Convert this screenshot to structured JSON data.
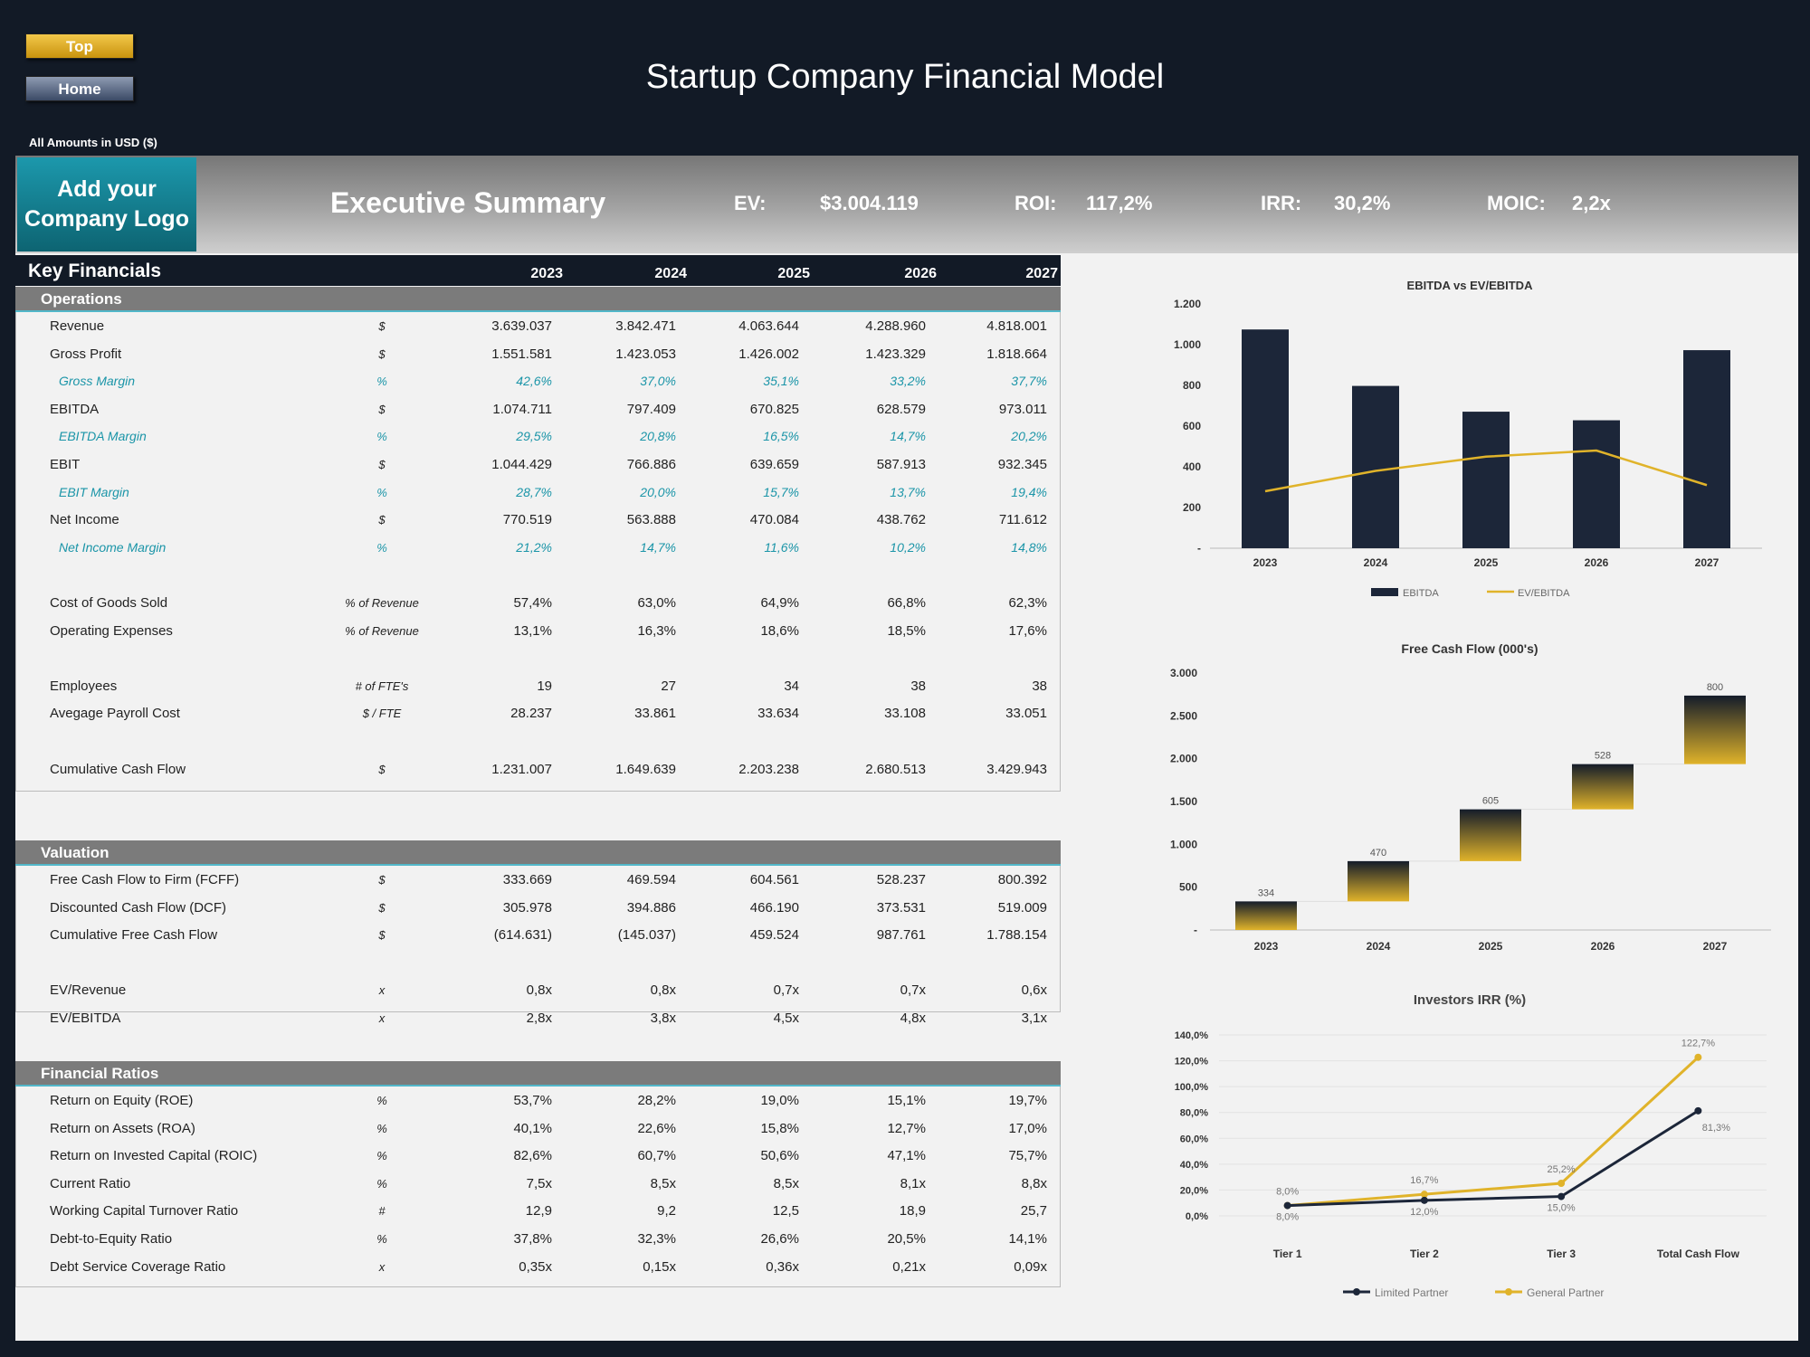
{
  "nav": {
    "top_label": "Top",
    "home_label": "Home"
  },
  "title": "Startup Company Financial Model",
  "amounts_note": "All Amounts in  USD ($)",
  "summary": {
    "logo_text": "Add your Company Logo",
    "section_title": "Executive Summary",
    "kpis": [
      {
        "label": "EV:",
        "value": "$3.004.119"
      },
      {
        "label": "ROI:",
        "value": "117,2%"
      },
      {
        "label": "IRR:",
        "value": "30,2%"
      },
      {
        "label": "MOIC:",
        "value": "2,2x"
      }
    ]
  },
  "key_financials": {
    "title": "Key Financials",
    "years": [
      "2023",
      "2024",
      "2025",
      "2026",
      "2027"
    ],
    "sections": [
      {
        "name": "Operations",
        "rows": [
          {
            "label": "Revenue",
            "unit": "$",
            "values": [
              "3.639.037",
              "3.842.471",
              "4.063.644",
              "4.288.960",
              "4.818.001"
            ]
          },
          {
            "label": "Gross Profit",
            "unit": "$",
            "values": [
              "1.551.581",
              "1.423.053",
              "1.426.002",
              "1.423.329",
              "1.818.664"
            ]
          },
          {
            "label": "Gross Margin",
            "unit": "%",
            "pct": true,
            "values": [
              "42,6%",
              "37,0%",
              "35,1%",
              "33,2%",
              "37,7%"
            ]
          },
          {
            "label": "EBITDA",
            "unit": "$",
            "values": [
              "1.074.711",
              "797.409",
              "670.825",
              "628.579",
              "973.011"
            ]
          },
          {
            "label": "EBITDA Margin",
            "unit": "%",
            "pct": true,
            "values": [
              "29,5%",
              "20,8%",
              "16,5%",
              "14,7%",
              "20,2%"
            ]
          },
          {
            "label": "EBIT",
            "unit": "$",
            "values": [
              "1.044.429",
              "766.886",
              "639.659",
              "587.913",
              "932.345"
            ]
          },
          {
            "label": "EBIT Margin",
            "unit": "%",
            "pct": true,
            "values": [
              "28,7%",
              "20,0%",
              "15,7%",
              "13,7%",
              "19,4%"
            ]
          },
          {
            "label": "Net Income",
            "unit": "$",
            "values": [
              "770.519",
              "563.888",
              "470.084",
              "438.762",
              "711.612"
            ]
          },
          {
            "label": "Net Income Margin",
            "unit": "%",
            "pct": true,
            "values": [
              "21,2%",
              "14,7%",
              "11,6%",
              "10,2%",
              "14,8%"
            ]
          },
          {
            "gap": true
          },
          {
            "label": "Cost of Goods Sold",
            "unit": "% of Revenue",
            "values": [
              "57,4%",
              "63,0%",
              "64,9%",
              "66,8%",
              "62,3%"
            ]
          },
          {
            "label": "Operating Expenses",
            "unit": "% of Revenue",
            "values": [
              "13,1%",
              "16,3%",
              "18,6%",
              "18,5%",
              "17,6%"
            ]
          },
          {
            "gap": true
          },
          {
            "label": "Employees",
            "unit": "# of FTE's",
            "values": [
              "19",
              "27",
              "34",
              "38",
              "38"
            ]
          },
          {
            "label": "Avegage Payroll Cost",
            "unit": "$  / FTE",
            "values": [
              "28.237",
              "33.861",
              "33.634",
              "33.108",
              "33.051"
            ]
          },
          {
            "gap": true
          },
          {
            "label": "Cumulative Cash Flow",
            "unit": "$",
            "values": [
              "1.231.007",
              "1.649.639",
              "2.203.238",
              "2.680.513",
              "3.429.943"
            ]
          }
        ]
      },
      {
        "name": "Valuation",
        "rows": [
          {
            "label": "Free Cash Flow to Firm (FCFF)",
            "unit": "$",
            "values": [
              "333.669",
              "469.594",
              "604.561",
              "528.237",
              "800.392"
            ]
          },
          {
            "label": "Discounted Cash Flow (DCF)",
            "unit": "$",
            "values": [
              "305.978",
              "394.886",
              "466.190",
              "373.531",
              "519.009"
            ]
          },
          {
            "label": "Cumulative Free Cash Flow",
            "unit": "$",
            "values": [
              "(614.631)",
              "(145.037)",
              "459.524",
              "987.761",
              "1.788.154"
            ]
          },
          {
            "gap": true
          },
          {
            "label": "EV/Revenue",
            "unit": "x",
            "values": [
              "0,8x",
              "0,8x",
              "0,7x",
              "0,7x",
              "0,6x"
            ]
          },
          {
            "label": "EV/EBITDA",
            "unit": "x",
            "values": [
              "2,8x",
              "3,8x",
              "4,5x",
              "4,8x",
              "3,1x"
            ]
          }
        ]
      },
      {
        "name": "Financial Ratios",
        "rows": [
          {
            "label": "Return on Equity (ROE)",
            "unit": "%",
            "values": [
              "53,7%",
              "28,2%",
              "19,0%",
              "15,1%",
              "19,7%"
            ]
          },
          {
            "label": "Return on Assets (ROA)",
            "unit": "%",
            "values": [
              "40,1%",
              "22,6%",
              "15,8%",
              "12,7%",
              "17,0%"
            ]
          },
          {
            "label": "Return on Invested Capital (ROIC)",
            "unit": "%",
            "values": [
              "82,6%",
              "60,7%",
              "50,6%",
              "47,1%",
              "75,7%"
            ]
          },
          {
            "label": "Current Ratio",
            "unit": "%",
            "values": [
              "7,5x",
              "8,5x",
              "8,5x",
              "8,1x",
              "8,8x"
            ]
          },
          {
            "label": "Working Capital Turnover Ratio",
            "unit": "#",
            "values": [
              "12,9",
              "9,2",
              "12,5",
              "18,9",
              "25,7"
            ]
          },
          {
            "label": "Debt-to-Equity Ratio",
            "unit": "%",
            "values": [
              "37,8%",
              "32,3%",
              "26,6%",
              "20,5%",
              "14,1%"
            ]
          },
          {
            "label": "Debt Service Coverage Ratio",
            "unit": "x",
            "values": [
              "0,35x",
              "0,15x",
              "0,36x",
              "0,21x",
              "0,09x"
            ]
          }
        ]
      }
    ]
  },
  "colors": {
    "dark": "#1c2639",
    "gold": "#e0b32a",
    "teal": "#1b95a8"
  },
  "chart_data": [
    {
      "type": "bar",
      "title": "EBITDA  vs EV/EBITDA",
      "categories": [
        "2023",
        "2024",
        "2025",
        "2026",
        "2027"
      ],
      "series": [
        {
          "name": "EBITDA",
          "kind": "bar",
          "values": [
            1074.7,
            797.4,
            670.8,
            628.6,
            973.0
          ]
        },
        {
          "name": "EV/EBITDA",
          "kind": "line",
          "values": [
            2.8,
            3.8,
            4.5,
            4.8,
            3.1
          ]
        }
      ],
      "y_ticks": [
        "-",
        "200",
        "400",
        "600",
        "800",
        "1.000",
        "1.200"
      ],
      "ylim": [
        0,
        1200
      ],
      "y2lim": [
        0,
        12
      ],
      "legend": "bottom"
    },
    {
      "type": "bar",
      "title": "Free Cash Flow (000's)",
      "categories": [
        "2023",
        "2024",
        "2025",
        "2026",
        "2027"
      ],
      "values": [
        334,
        470,
        605,
        528,
        800
      ],
      "data_labels": [
        "334",
        "470",
        "605",
        "528",
        "800"
      ],
      "y_ticks": [
        "-",
        "500",
        "1.000",
        "1.500",
        "2.000",
        "2.500",
        "3.000"
      ],
      "ylim": [
        0,
        3000
      ],
      "waterfall": true
    },
    {
      "type": "line",
      "title": "Investors IRR (%)",
      "categories": [
        "Tier 1",
        "Tier 2",
        "Tier 3",
        "Total Cash Flow"
      ],
      "series": [
        {
          "name": "Limited Partner",
          "values": [
            8.0,
            12.0,
            15.0,
            81.3
          ],
          "labels": [
            "8,0%",
            "12,0%",
            "15,0%",
            "81,3%"
          ]
        },
        {
          "name": "General Partner",
          "values": [
            8.0,
            16.7,
            25.2,
            122.7
          ],
          "labels": [
            "8,0%",
            "16,7%",
            "25,2%",
            "122,7%"
          ]
        }
      ],
      "y_ticks": [
        "0,0%",
        "20,0%",
        "40,0%",
        "60,0%",
        "80,0%",
        "100,0%",
        "120,0%",
        "140,0%"
      ],
      "ylim": [
        0,
        140
      ],
      "legend": "bottom"
    }
  ]
}
